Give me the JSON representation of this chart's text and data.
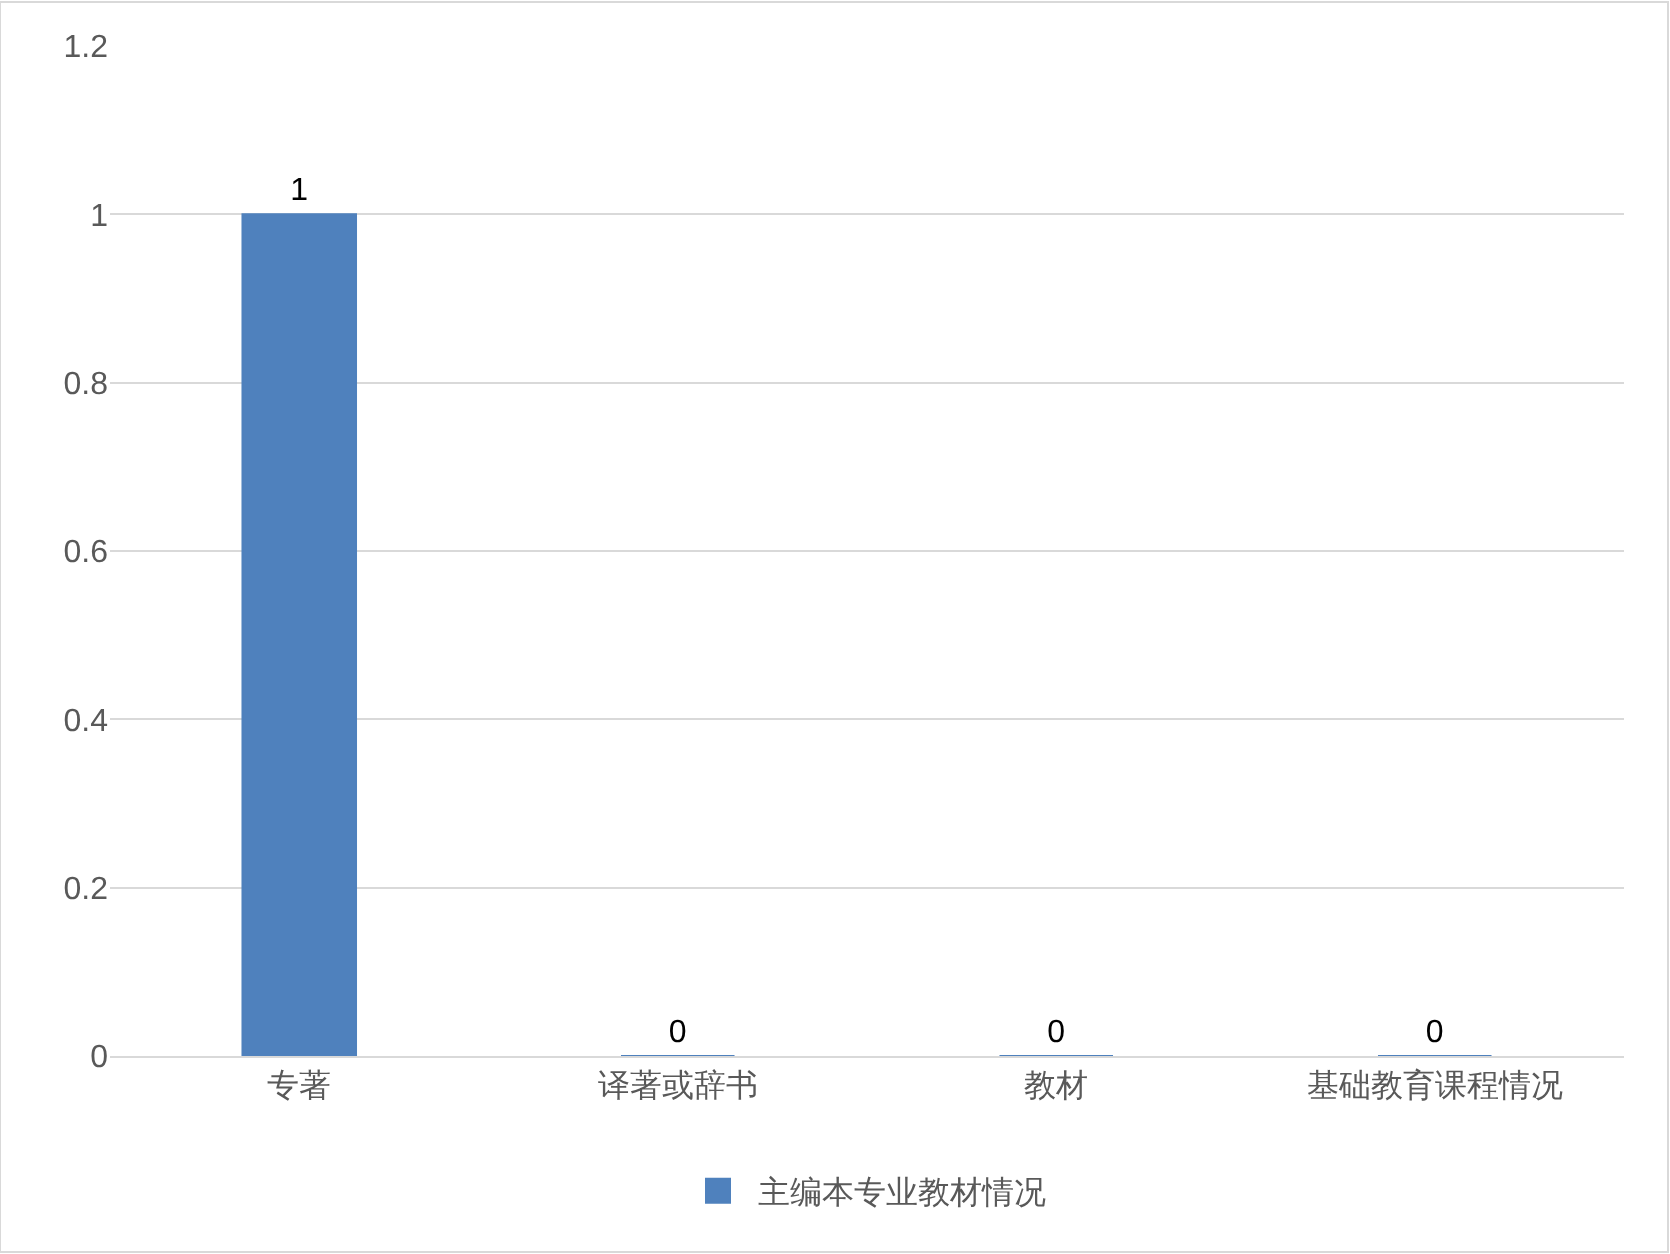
{
  "chart_data": {
    "type": "bar",
    "categories": [
      "专著",
      "译著或辞书",
      "教材",
      "基础教育课程情况"
    ],
    "series": [
      {
        "name": "主编本专业教材情况",
        "color": "#4f81bd",
        "values": [
          1,
          0,
          0,
          0
        ]
      }
    ],
    "ylim": [
      0,
      1.2
    ],
    "yticks": [
      0,
      0.2,
      0.4,
      0.6,
      0.8,
      1,
      1.2
    ],
    "grid": "y",
    "legend": "bottom",
    "data_labels": true
  }
}
